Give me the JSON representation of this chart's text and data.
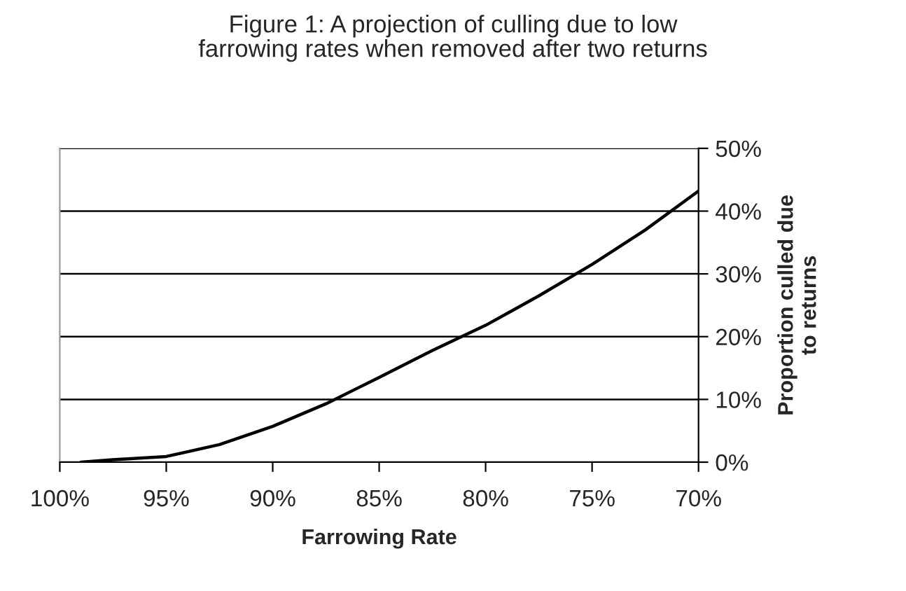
{
  "chart_data": {
    "type": "line",
    "title": "Figure 1: A projection of culling due to low\nfarrowing rates when removed after two returns",
    "xlabel": "Farrowing Rate",
    "ylabel": "Proportion culled due\nto returns",
    "x": [
      99,
      97.5,
      95,
      92.5,
      90,
      87.5,
      85,
      82.5,
      80,
      77.5,
      75,
      72.5,
      70
    ],
    "series": [
      {
        "color": "#000000",
        "values": [
          0,
          0.4,
          0.9,
          2.8,
          5.7,
          9.3,
          13.5,
          17.8,
          21.8,
          26.5,
          31.5,
          37,
          43.2
        ]
      }
    ],
    "xlim": [
      100,
      70
    ],
    "xticks": [
      {
        "value": 100,
        "label": "100%"
      },
      {
        "value": 95,
        "label": "95%"
      },
      {
        "value": 90,
        "label": "90%"
      },
      {
        "value": 85,
        "label": "85%"
      },
      {
        "value": 80,
        "label": "80%"
      },
      {
        "value": 75,
        "label": "75%"
      },
      {
        "value": 70,
        "label": "70%"
      }
    ],
    "ylim": [
      0,
      50
    ],
    "yticks": [
      {
        "value": 0,
        "label": "0%"
      },
      {
        "value": 10,
        "label": "10%"
      },
      {
        "value": 20,
        "label": "20%"
      },
      {
        "value": 30,
        "label": "30%"
      },
      {
        "value": 40,
        "label": "40%"
      },
      {
        "value": 50,
        "label": "50%"
      }
    ],
    "grid": "y",
    "legend": false,
    "marker": "none",
    "line_style": "solid"
  }
}
